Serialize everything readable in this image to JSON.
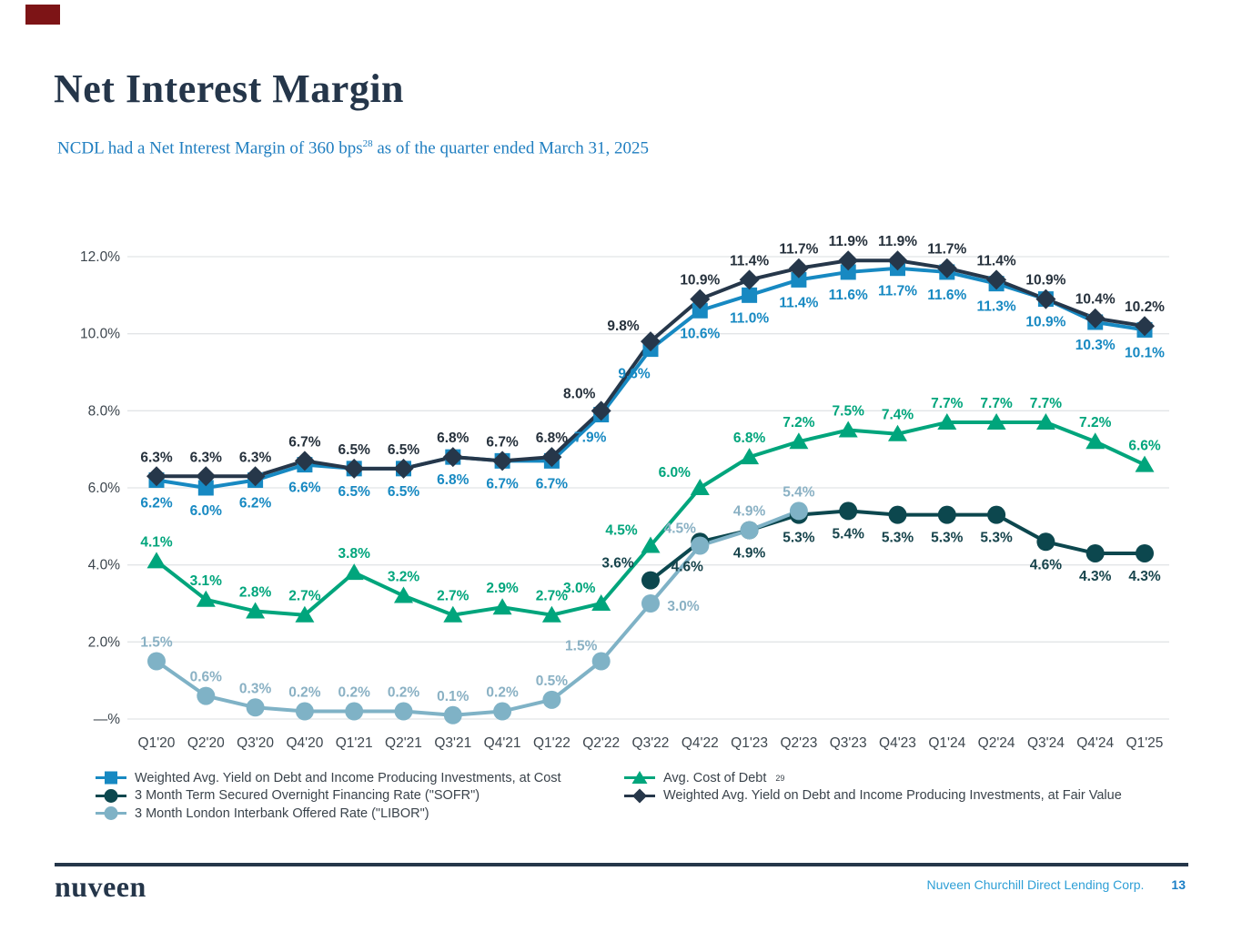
{
  "slide": {
    "title": "Net Interest Margin",
    "subtitle_prefix": "NCDL had a Net Interest Margin of 360 bps",
    "subtitle_sup": "28",
    "subtitle_suffix": " as of the quarter ended March 31, 2025"
  },
  "footer": {
    "logo": "nuveen",
    "company": "Nuveen Churchill Direct Lending Corp.",
    "page_number": "13"
  },
  "colors": {
    "title_navy": "#25364a",
    "subtitle_blue": "#1f7ec0",
    "gridline": "#e2e5e7",
    "axis_label": "#3d464e",
    "footer_bar": "#26374a",
    "red_tag": "#7d1416"
  },
  "chart_data": {
    "type": "line",
    "categories": [
      "Q1'20",
      "Q2'20",
      "Q3'20",
      "Q4'20",
      "Q1'21",
      "Q2'21",
      "Q3'21",
      "Q4'21",
      "Q1'22",
      "Q2'22",
      "Q3'22",
      "Q4'22",
      "Q1'23",
      "Q2'23",
      "Q3'23",
      "Q4'23",
      "Q1'24",
      "Q2'24",
      "Q3'24",
      "Q4'24",
      "Q1'25"
    ],
    "y_axis": {
      "min": 0,
      "max": 12,
      "step": 2,
      "grid": true,
      "legend_position": "bottom",
      "ticks": [
        {
          "label": "12.0%",
          "value": 12
        },
        {
          "label": "10.0%",
          "value": 10
        },
        {
          "label": "8.0%",
          "value": 8
        },
        {
          "label": "6.0%",
          "value": 6
        },
        {
          "label": "4.0%",
          "value": 4
        },
        {
          "label": "2.0%",
          "value": 2
        },
        {
          "label": "—%",
          "value": 0
        }
      ]
    },
    "series": [
      {
        "name": "Weighted Avg. Yield on Debt and Income Producing Investments, at Cost",
        "marker": "square",
        "color": "#1789c2",
        "label_color": "#1789c2",
        "label_position": "below",
        "values": [
          6.2,
          6.0,
          6.2,
          6.6,
          6.5,
          6.5,
          6.8,
          6.7,
          6.7,
          7.9,
          9.6,
          10.6,
          11.0,
          11.4,
          11.6,
          11.7,
          11.6,
          11.3,
          10.9,
          10.3,
          10.1
        ]
      },
      {
        "name": "Weighted Avg. Yield on Debt and Income Producing Investments, at Fair Value",
        "marker": "diamond",
        "color": "#26374a",
        "label_color": "#26313c",
        "label_position": "above",
        "values": [
          6.3,
          6.3,
          6.3,
          6.7,
          6.5,
          6.5,
          6.8,
          6.7,
          6.8,
          8.0,
          9.8,
          10.9,
          11.4,
          11.7,
          11.9,
          11.9,
          11.7,
          11.4,
          10.9,
          10.4,
          10.2
        ]
      },
      {
        "name": "Avg. Cost of Debt",
        "sup": "29",
        "marker": "triangle",
        "color": "#00a57c",
        "label_color": "#00a57c",
        "label_position": "above",
        "values": [
          4.1,
          3.1,
          2.8,
          2.7,
          3.8,
          3.2,
          2.7,
          2.9,
          2.7,
          3.0,
          4.5,
          6.0,
          6.8,
          7.2,
          7.5,
          7.4,
          7.7,
          7.7,
          7.7,
          7.2,
          6.6
        ]
      },
      {
        "name": "3 Month Term Secured Overnight Financing Rate (\"SOFR\")",
        "marker": "circle",
        "color": "#0c474e",
        "label_color": "#17444c",
        "label_position": "below",
        "values": [
          null,
          null,
          null,
          null,
          null,
          null,
          null,
          null,
          null,
          null,
          3.6,
          4.6,
          4.9,
          5.3,
          5.4,
          5.3,
          5.3,
          5.3,
          4.6,
          4.3,
          4.3
        ]
      },
      {
        "name": "3 Month London Interbank Offered Rate (\"LIBOR\")",
        "marker": "circle",
        "color": "#7fb2c6",
        "label_color": "#8ab1c4",
        "label_position": "above",
        "values": [
          1.5,
          0.6,
          0.3,
          0.2,
          0.2,
          0.2,
          0.1,
          0.2,
          0.5,
          1.5,
          3.0,
          4.5,
          4.9,
          5.4,
          null,
          null,
          null,
          null,
          null,
          null,
          null
        ]
      }
    ],
    "legend": {
      "left": [
        0,
        3,
        4
      ],
      "right": [
        2,
        1
      ]
    }
  }
}
